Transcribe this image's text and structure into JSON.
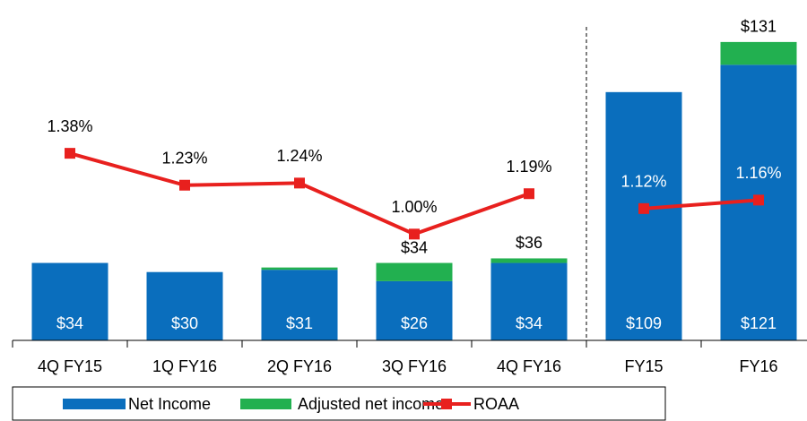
{
  "chart_data": {
    "type": "bar",
    "categories": [
      "4Q FY15",
      "1Q FY16",
      "2Q FY16",
      "3Q FY16",
      "4Q FY16",
      "FY15",
      "FY16"
    ],
    "series": [
      {
        "name": "Net Income",
        "color": "#0a6ebd",
        "values": [
          34,
          30,
          31,
          26,
          34,
          109,
          121
        ],
        "value_labels": [
          "$34",
          "$30",
          "$31",
          "$26",
          "$34",
          "$109",
          "$121"
        ]
      },
      {
        "name": "Adjusted net income",
        "color": "#22b050",
        "values": [
          0,
          0,
          1,
          8,
          2,
          0,
          10
        ]
      },
      {
        "name": "ROAA",
        "type": "line",
        "axis": "y2",
        "color": "#e8201e",
        "values": [
          1.38,
          1.23,
          1.24,
          1.0,
          1.19,
          1.12,
          1.16
        ],
        "value_labels": [
          "1.38%",
          "1.23%",
          "1.24%",
          "1.00%",
          "1.19%",
          "1.12%",
          "1.16%"
        ]
      }
    ],
    "total_labels": [
      null,
      null,
      null,
      "$34",
      "$36",
      null,
      "$131"
    ],
    "divider_after": 4,
    "ylim": [
      0,
      140
    ],
    "y2lim": [
      0.5,
      2.0
    ],
    "legend": "bottom"
  }
}
